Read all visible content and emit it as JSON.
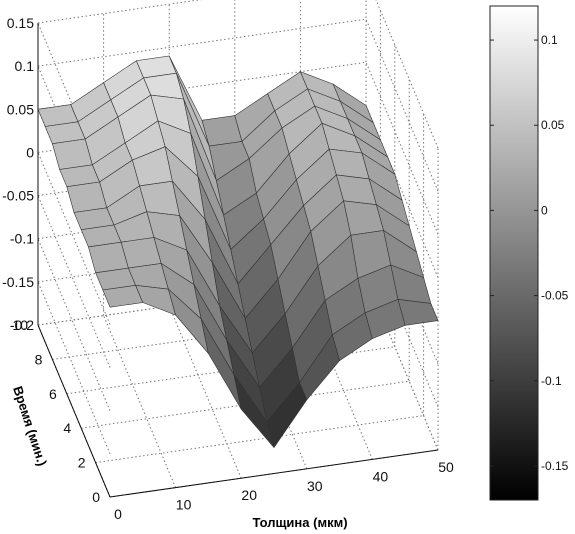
{
  "chart_data": {
    "type": "surface",
    "title": "",
    "xlabel": "Толщина (мкм)",
    "ylabel": "Время (мин.)",
    "zlabel": "",
    "xlim": [
      0,
      50
    ],
    "ylim": [
      0,
      10
    ],
    "zlim": [
      -0.2,
      0.15
    ],
    "x_ticks": [
      "0",
      "10",
      "20",
      "30",
      "40",
      "50"
    ],
    "y_ticks": [
      "0",
      "2",
      "4",
      "6",
      "8",
      "10"
    ],
    "z_ticks": [
      "-0.2",
      "-0.15",
      "-0.1",
      "-0.05",
      "0",
      "0.05",
      "0.1",
      "0.15"
    ],
    "x": [
      0,
      5,
      10,
      15,
      20,
      25,
      30,
      35,
      40,
      45,
      50
    ],
    "y": [
      0,
      1,
      2,
      3,
      4,
      5,
      6,
      7,
      8,
      9,
      10
    ],
    "z": [
      [
        0.02,
        0.02,
        0.0,
        -0.05,
        -0.12,
        -0.17,
        -0.12,
        -0.08,
        -0.06,
        -0.05,
        -0.05
      ],
      [
        0.02,
        0.02,
        0.01,
        -0.03,
        -0.1,
        -0.16,
        -0.12,
        -0.07,
        -0.05,
        -0.04,
        -0.05
      ],
      [
        0.02,
        0.02,
        0.02,
        -0.01,
        -0.08,
        -0.14,
        -0.1,
        -0.05,
        -0.03,
        -0.02,
        -0.04
      ],
      [
        0.03,
        0.03,
        0.03,
        0.01,
        -0.06,
        -0.12,
        -0.08,
        -0.03,
        0.0,
        0.0,
        -0.03
      ],
      [
        0.03,
        0.03,
        0.04,
        0.03,
        -0.03,
        -0.1,
        -0.06,
        -0.01,
        0.02,
        0.01,
        -0.02
      ],
      [
        0.03,
        0.03,
        0.05,
        0.05,
        0.0,
        -0.08,
        -0.04,
        0.0,
        0.03,
        0.02,
        -0.01
      ],
      [
        0.04,
        0.04,
        0.06,
        0.07,
        0.03,
        -0.06,
        -0.03,
        0.01,
        0.04,
        0.03,
        0.0
      ],
      [
        0.04,
        0.04,
        0.06,
        0.08,
        0.06,
        -0.04,
        -0.02,
        0.02,
        0.05,
        0.03,
        0.0
      ],
      [
        0.05,
        0.05,
        0.07,
        0.09,
        0.08,
        -0.02,
        0.0,
        0.03,
        0.05,
        0.03,
        0.0
      ],
      [
        0.05,
        0.05,
        0.07,
        0.09,
        0.09,
        0.0,
        0.0,
        0.03,
        0.05,
        0.03,
        0.0
      ],
      [
        0.05,
        0.05,
        0.07,
        0.09,
        0.09,
        0.01,
        0.01,
        0.03,
        0.05,
        0.03,
        0.0
      ]
    ],
    "colormap": "gray",
    "colorbar": {
      "range": [
        -0.17,
        0.12
      ],
      "ticks": [
        "0.1",
        "0.05",
        "0",
        "-0.05",
        "-0.1",
        "-0.15"
      ],
      "colors": {
        "low": "#000000",
        "high": "#ffffff"
      }
    },
    "grid": true
  }
}
